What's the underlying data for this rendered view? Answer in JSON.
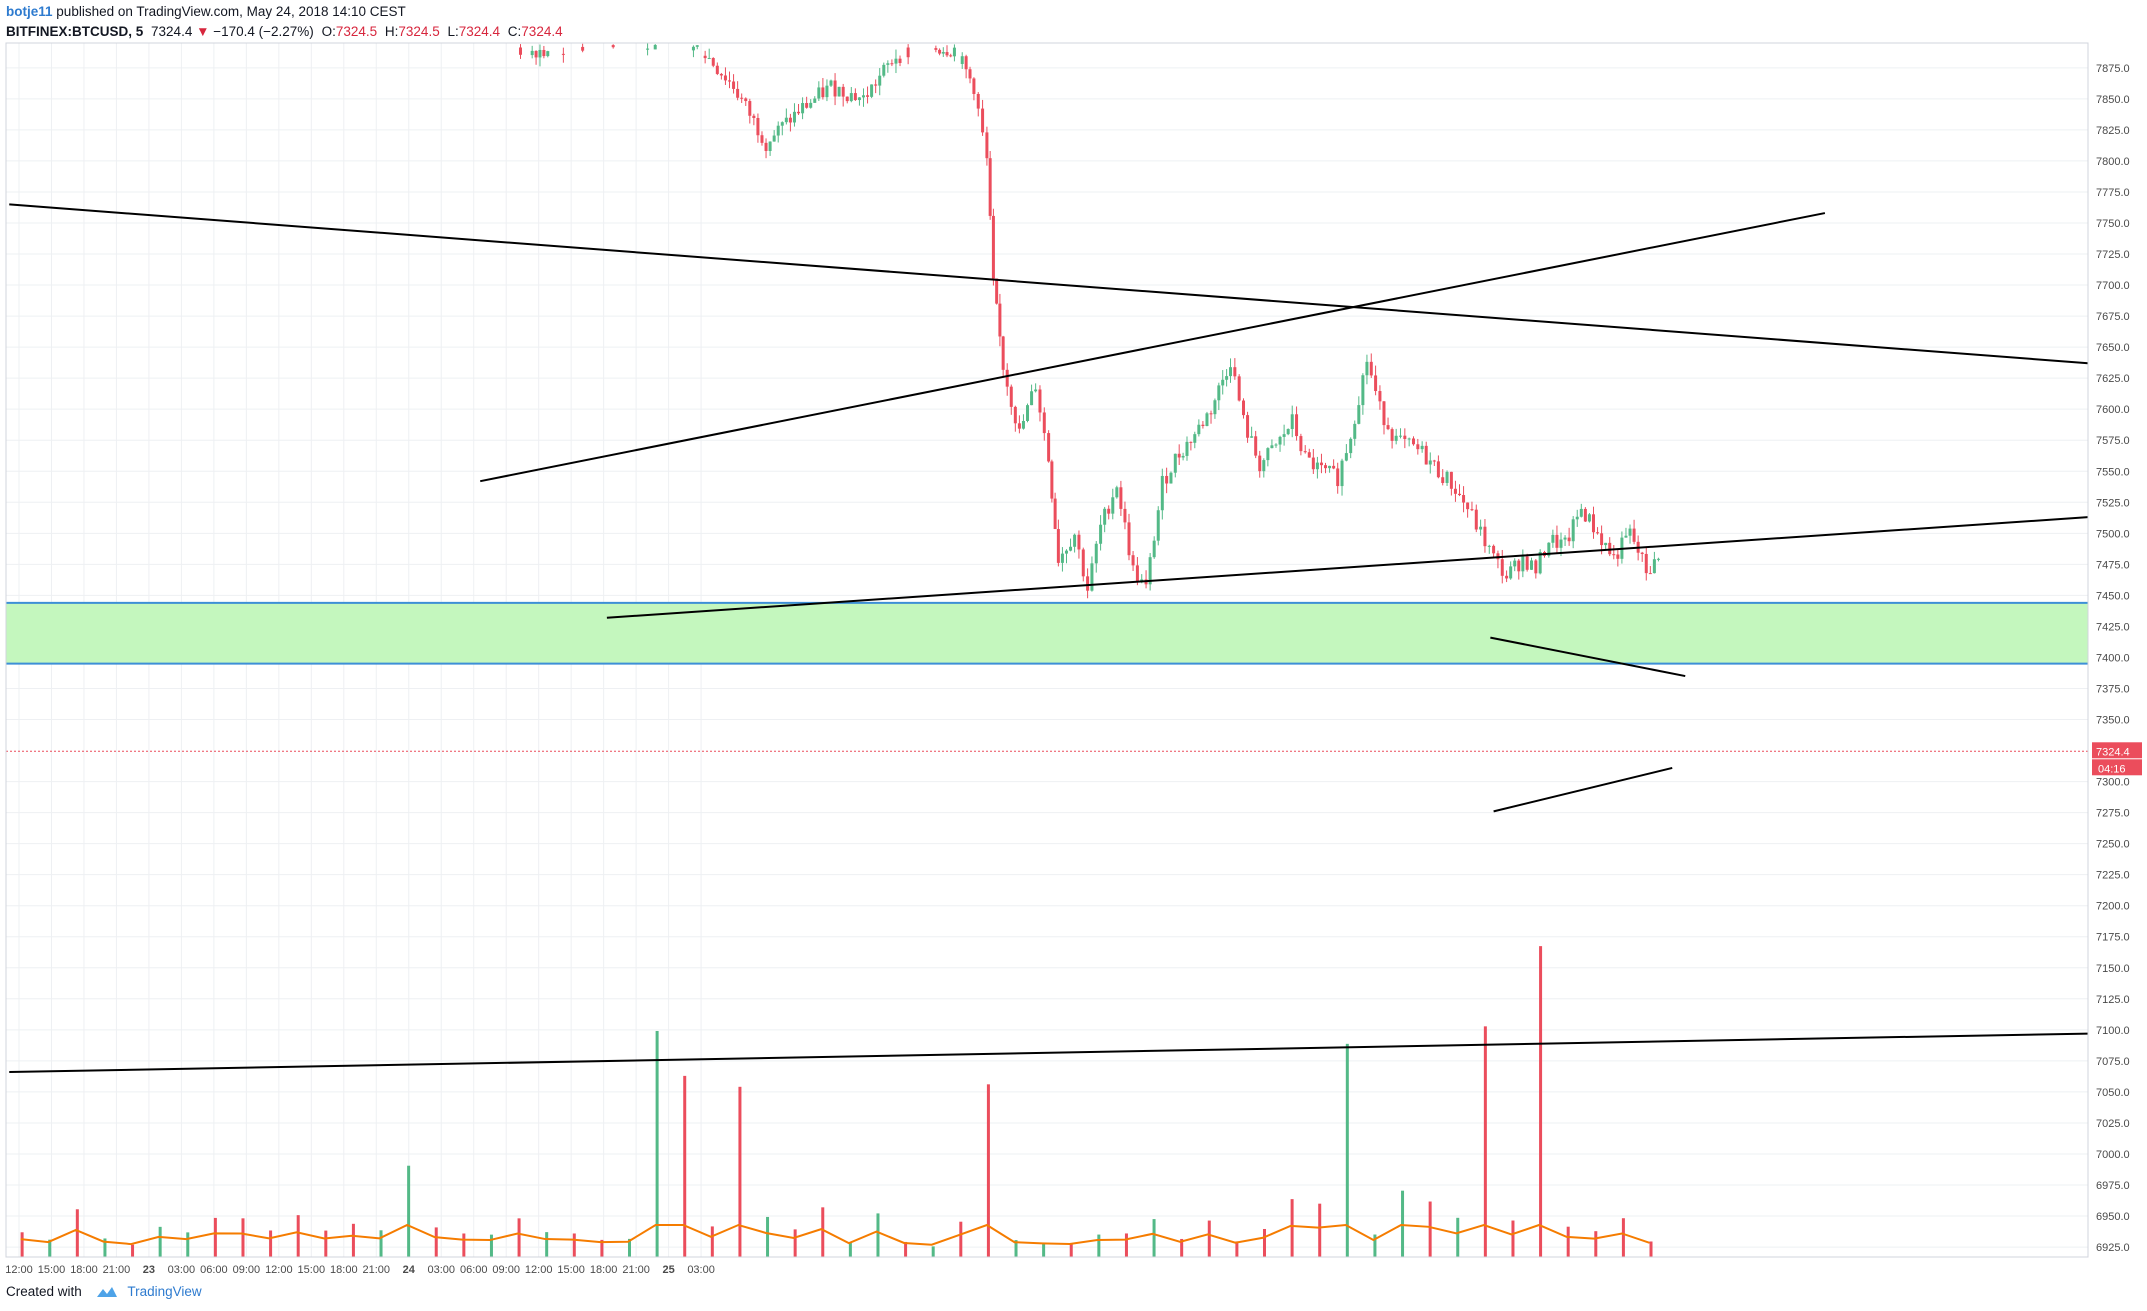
{
  "header": {
    "author": "botje11",
    "published_text": "published on TradingView.com, May 24, 2018 14:10 CEST",
    "symbol": "BITFINEX:BTCUSD, 5",
    "last": "7324.4",
    "change": "−170.4 (−2.27%)",
    "o_label": "O:",
    "o_val": "7324.5",
    "h_label": "H:",
    "h_val": "7324.5",
    "l_label": "L:",
    "l_val": "7324.4",
    "c_label": "C:",
    "c_val": "7324.4"
  },
  "footer": {
    "created_with": "Created with",
    "brand": "TradingView"
  },
  "colors": {
    "up": "#53b987",
    "down": "#eb4d5c",
    "zone_fill": "#c4f7be",
    "zone_line": "#3d8fd6",
    "ma": "#f57c00",
    "trend": "#000000",
    "price_line": "#eb4d5c"
  },
  "chart_data": {
    "type": "candlestick",
    "symbol": "BITFINEX:BTCUSD",
    "interval": "5",
    "y_axis": {
      "ticks": [
        "7875.0",
        "7850.0",
        "7825.0",
        "7800.0",
        "7775.0",
        "7750.0",
        "7725.0",
        "7700.0",
        "7675.0",
        "7650.0",
        "7625.0",
        "7600.0",
        "7575.0",
        "7550.0",
        "7525.0",
        "7500.0",
        "7475.0",
        "7450.0",
        "7425.0",
        "7400.0",
        "7375.0",
        "7350.0",
        "7300.0",
        "7275.0",
        "7250.0",
        "7225.0",
        "7200.0",
        "7175.0",
        "7150.0",
        "7125.0",
        "7100.0",
        "7075.0",
        "7050.0",
        "7025.0",
        "7000.0",
        "6975.0",
        "6950.0",
        "6925.0"
      ],
      "range": [
        6917,
        7895
      ]
    },
    "x_axis": {
      "ticks": [
        "12:00",
        "15:00",
        "18:00",
        "21:00",
        "23",
        "03:00",
        "06:00",
        "09:00",
        "12:00",
        "15:00",
        "18:00",
        "21:00",
        "24",
        "03:00",
        "06:00",
        "09:00",
        "12:00",
        "15:00",
        "18:00",
        "21:00",
        "25",
        "03:00"
      ],
      "range": [
        -0.4,
        63.7
      ]
    },
    "price_label": "7324.4",
    "countdown": "04:16",
    "current_price": 7324.4,
    "support_zone": [
      7395,
      7444
    ],
    "trend_lines": [
      {
        "from": [
          -0.3,
          7765
        ],
        "to": [
          63.7,
          7637
        ]
      },
      {
        "from": [
          14.2,
          7542
        ],
        "to": [
          55.6,
          7758
        ]
      },
      {
        "from": [
          18.1,
          7432
        ],
        "to": [
          63.7,
          7513
        ]
      },
      {
        "from": [
          45.3,
          7416
        ],
        "to": [
          51.3,
          7385
        ]
      },
      {
        "from": [
          45.4,
          7276
        ],
        "to": [
          50.9,
          7311
        ]
      },
      {
        "from": [
          -0.3,
          7066
        ],
        "to": [
          63.7,
          7097
        ]
      }
    ],
    "price_path": [
      [
        15.2,
        7890
      ],
      [
        17.0,
        7890
      ],
      [
        19.0,
        7895
      ],
      [
        21.0,
        7890
      ],
      [
        22.0,
        7860
      ],
      [
        23.0,
        7815
      ],
      [
        24.0,
        7840
      ],
      [
        25.0,
        7860
      ],
      [
        26.0,
        7850
      ],
      [
        27.0,
        7885
      ],
      [
        28.0,
        7892
      ],
      [
        28.8,
        7890
      ],
      [
        29.4,
        7860
      ],
      [
        29.8,
        7800
      ],
      [
        30.0,
        7700
      ],
      [
        30.3,
        7635
      ],
      [
        30.8,
        7580
      ],
      [
        31.3,
        7620
      ],
      [
        31.7,
        7560
      ],
      [
        32.0,
        7480
      ],
      [
        32.5,
        7500
      ],
      [
        32.9,
        7455
      ],
      [
        33.3,
        7505
      ],
      [
        33.8,
        7540
      ],
      [
        34.3,
        7470
      ],
      [
        34.7,
        7455
      ],
      [
        35.2,
        7540
      ],
      [
        35.6,
        7560
      ],
      [
        36.2,
        7580
      ],
      [
        36.7,
        7600
      ],
      [
        37.3,
        7640
      ],
      [
        37.7,
        7590
      ],
      [
        38.2,
        7555
      ],
      [
        38.7,
        7570
      ],
      [
        39.2,
        7590
      ],
      [
        39.6,
        7560
      ],
      [
        40.1,
        7550
      ],
      [
        40.6,
        7545
      ],
      [
        41.0,
        7580
      ],
      [
        41.5,
        7640
      ],
      [
        41.9,
        7600
      ],
      [
        42.4,
        7575
      ],
      [
        42.8,
        7570
      ],
      [
        43.2,
        7565
      ],
      [
        43.7,
        7550
      ],
      [
        44.1,
        7540
      ],
      [
        44.6,
        7520
      ],
      [
        45.0,
        7500
      ],
      [
        45.4,
        7480
      ],
      [
        45.8,
        7465
      ],
      [
        46.3,
        7480
      ],
      [
        46.7,
        7470
      ],
      [
        47.1,
        7495
      ],
      [
        47.6,
        7490
      ],
      [
        48.1,
        7520
      ],
      [
        48.6,
        7500
      ],
      [
        49.1,
        7480
      ],
      [
        49.6,
        7500
      ],
      [
        50.1,
        7470
      ],
      [
        50.6,
        7480
      ]
    ],
    "volume_note": "volume histogram with moving average in lower pane"
  }
}
